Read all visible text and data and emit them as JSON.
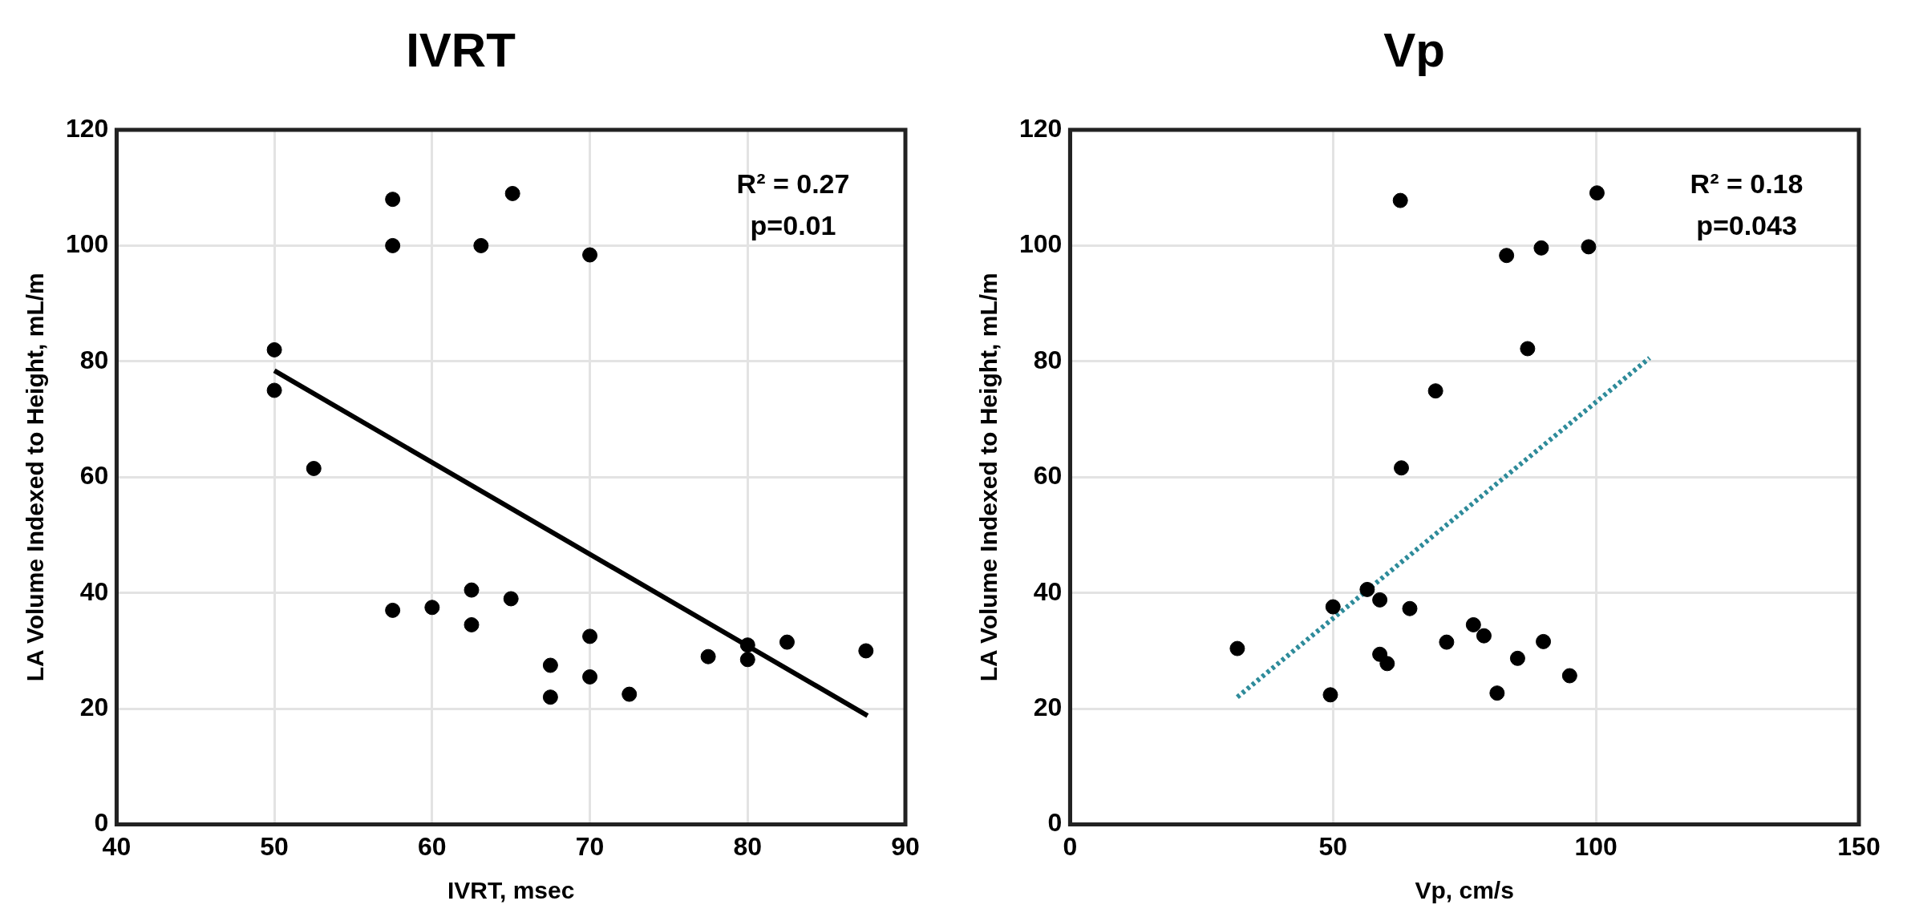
{
  "chart_data": [
    {
      "type": "scatter",
      "title": "IVRT",
      "xlabel": "IVRT, msec",
      "ylabel": "LA Volume Indexed to Height, mL/m",
      "annotations": [
        "R² = 0.27",
        "p=0.01"
      ],
      "xlim": [
        40,
        90
      ],
      "xticks": [
        40,
        50,
        60,
        70,
        80,
        90
      ],
      "ylim": [
        0,
        120
      ],
      "yticks": [
        0,
        20,
        40,
        60,
        80,
        100,
        120
      ],
      "grid": true,
      "series": [
        {
          "type": "scatter",
          "marker": "circle",
          "color": "#000000",
          "x": [
            57.5,
            57.5,
            65.1,
            63.1,
            70,
            50,
            50,
            52.5,
            57.5,
            60,
            62.5,
            62.5,
            65,
            70,
            67.5,
            70,
            67.5,
            72.5,
            77.5,
            80,
            80,
            82.5,
            87.5
          ],
          "values": [
            108,
            100,
            109,
            100,
            98.4,
            82,
            75,
            61.5,
            37,
            37.5,
            40.5,
            34.5,
            39,
            32.5,
            27.5,
            25.5,
            22,
            22.5,
            29,
            31,
            28.5,
            31.5,
            30
          ]
        },
        {
          "type": "line",
          "marker": "none",
          "color": "#000000",
          "line_style": "solid",
          "x": [
            50,
            87.6
          ],
          "values": [
            78.4,
            18.8
          ]
        }
      ]
    },
    {
      "type": "scatter",
      "title": "Vp",
      "xlabel": "Vp, cm/s",
      "ylabel": "LA Volume Indexed to Height, mL/m",
      "annotations": [
        "R² = 0.18",
        "p=0.043"
      ],
      "xlim": [
        0,
        150
      ],
      "xticks": [
        0,
        50,
        100,
        150
      ],
      "ylim": [
        0,
        120
      ],
      "yticks": [
        0,
        20,
        40,
        60,
        80,
        100,
        120
      ],
      "grid": true,
      "series": [
        {
          "type": "scatter",
          "marker": "circle",
          "color": "#000000",
          "x": [
            31.8,
            50,
            49.5,
            56.5,
            58.9,
            64.6,
            58.9,
            60.3,
            62.8,
            63,
            69.5,
            71.6,
            76.7,
            78.7,
            81.2,
            83,
            85.1,
            87,
            89.6,
            90,
            95,
            98.6,
            100.2
          ],
          "values": [
            30.4,
            37.6,
            22.4,
            40.6,
            38.8,
            37.3,
            29.4,
            27.8,
            107.8,
            61.6,
            74.9,
            31.5,
            34.5,
            32.6,
            22.7,
            98.3,
            28.7,
            82.2,
            99.6,
            31.6,
            25.7,
            99.8,
            109.1
          ]
        },
        {
          "type": "line",
          "marker": "none",
          "color": "#2e8b9a",
          "line_style": "dotted",
          "x": [
            31.8,
            110.2
          ],
          "values": [
            22,
            80.6
          ]
        }
      ]
    }
  ]
}
